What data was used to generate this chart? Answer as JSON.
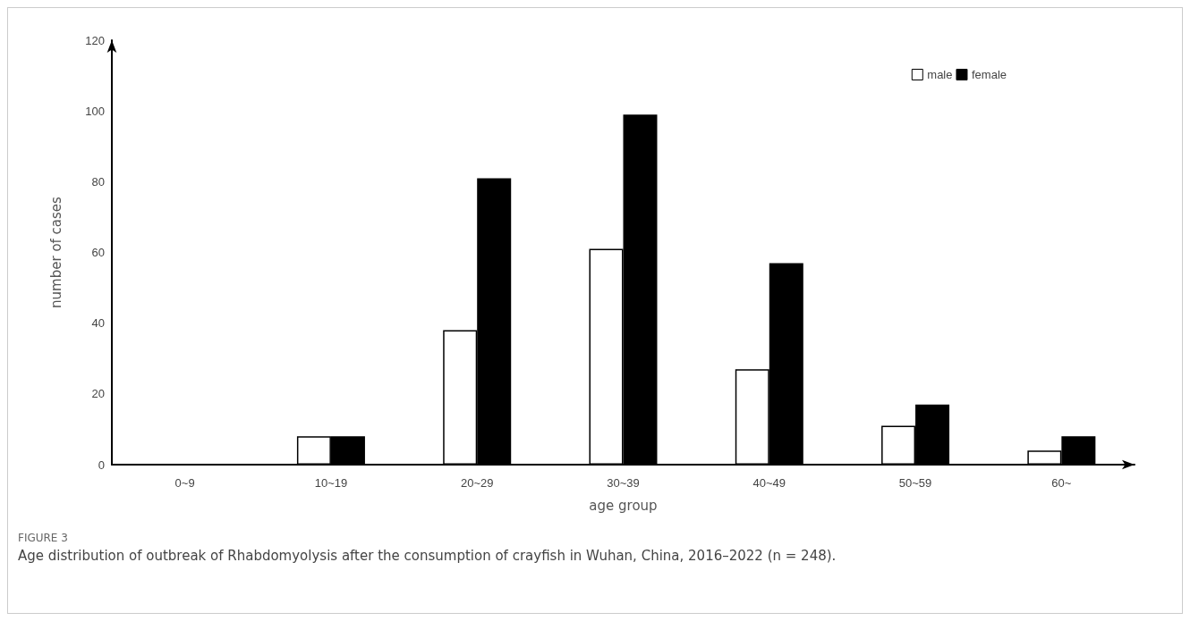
{
  "chart_data": {
    "type": "bar",
    "xlabel": "age group",
    "ylabel": "number of cases",
    "categories": [
      "0~9",
      "10~19",
      "20~29",
      "30~39",
      "40~49",
      "50~59",
      "60~"
    ],
    "series": [
      {
        "name": "male",
        "color": "#ffffff",
        "values": [
          0,
          8,
          38,
          61,
          27,
          11,
          4
        ]
      },
      {
        "name": "female",
        "color": "#000000",
        "values": [
          0,
          8,
          81,
          99,
          57,
          17,
          8
        ]
      }
    ],
    "ylim": [
      0,
      120
    ],
    "yticks": [
      0,
      20,
      40,
      60,
      80,
      100,
      120
    ],
    "grid": false,
    "legend": "top right",
    "annotations": [
      "FIGURE 3",
      "Age distribution of outbreak of Rhabdomyolysis after the consumption of crayfish in Wuhan, China, 2016–2022 (n = 248)."
    ]
  }
}
